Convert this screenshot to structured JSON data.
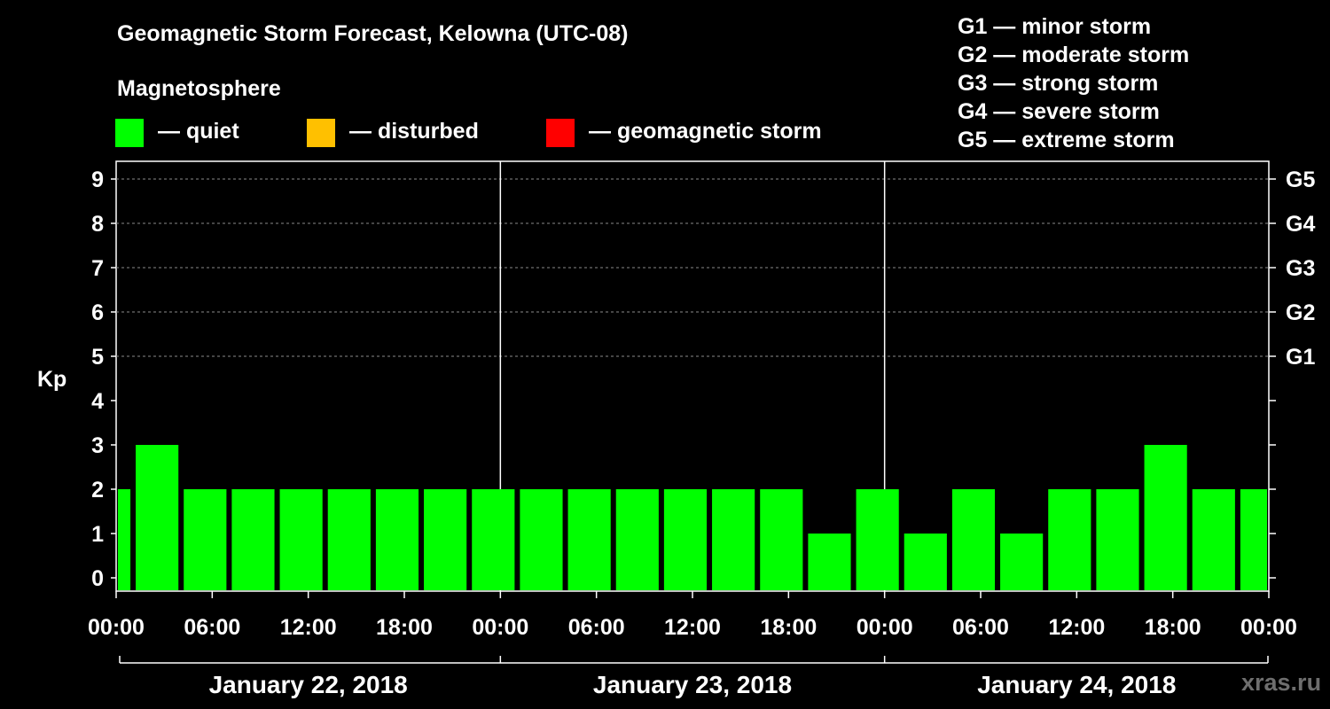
{
  "title": "Geomagnetic Storm Forecast, Kelowna (UTC-08)",
  "subtitle": "Magnetosphere",
  "legend": [
    {
      "label": "— quiet",
      "color": "#00ff00"
    },
    {
      "label": "— disturbed",
      "color": "#ffc000"
    },
    {
      "label": "— geomagnetic storm",
      "color": "#ff0000"
    }
  ],
  "g_legend": [
    "G1 — minor storm",
    "G2 — moderate storm",
    "G3 — strong storm",
    "G4 — severe storm",
    "G5 — extreme storm"
  ],
  "watermark": "xras.ru",
  "chart_data": {
    "type": "bar",
    "title": "Geomagnetic Storm Forecast, Kelowna (UTC-08)",
    "ylabel": "Kp",
    "ylim": [
      0,
      9
    ],
    "y_ticks": [
      "0",
      "1",
      "2",
      "3",
      "4",
      "5",
      "6",
      "7",
      "8",
      "9"
    ],
    "right_ticks": [
      {
        "kp": 5,
        "label": "G1"
      },
      {
        "kp": 6,
        "label": "G2"
      },
      {
        "kp": 7,
        "label": "G3"
      },
      {
        "kp": 8,
        "label": "G4"
      },
      {
        "kp": 9,
        "label": "G5"
      }
    ],
    "x_tick_labels": [
      "00:00",
      "06:00",
      "12:00",
      "18:00",
      "00:00",
      "06:00",
      "12:00",
      "18:00",
      "00:00",
      "06:00",
      "12:00",
      "18:00",
      "00:00"
    ],
    "dates": [
      "January 22, 2018",
      "January 23, 2018",
      "January 24, 2018"
    ],
    "x_range_hours": [
      0,
      72
    ],
    "bars": [
      {
        "start": 0,
        "end": 1,
        "kp": 2
      },
      {
        "start": 1,
        "end": 4,
        "kp": 3
      },
      {
        "start": 4,
        "end": 7,
        "kp": 2
      },
      {
        "start": 7,
        "end": 10,
        "kp": 2
      },
      {
        "start": 10,
        "end": 13,
        "kp": 2
      },
      {
        "start": 13,
        "end": 16,
        "kp": 2
      },
      {
        "start": 16,
        "end": 19,
        "kp": 2
      },
      {
        "start": 19,
        "end": 22,
        "kp": 2
      },
      {
        "start": 22,
        "end": 25,
        "kp": 2
      },
      {
        "start": 25,
        "end": 28,
        "kp": 2
      },
      {
        "start": 28,
        "end": 31,
        "kp": 2
      },
      {
        "start": 31,
        "end": 34,
        "kp": 2
      },
      {
        "start": 34,
        "end": 37,
        "kp": 2
      },
      {
        "start": 37,
        "end": 40,
        "kp": 2
      },
      {
        "start": 40,
        "end": 43,
        "kp": 2
      },
      {
        "start": 43,
        "end": 46,
        "kp": 1
      },
      {
        "start": 46,
        "end": 49,
        "kp": 2
      },
      {
        "start": 49,
        "end": 52,
        "kp": 1
      },
      {
        "start": 52,
        "end": 55,
        "kp": 2
      },
      {
        "start": 55,
        "end": 58,
        "kp": 1
      },
      {
        "start": 58,
        "end": 61,
        "kp": 2
      },
      {
        "start": 61,
        "end": 64,
        "kp": 2
      },
      {
        "start": 64,
        "end": 67,
        "kp": 3
      },
      {
        "start": 67,
        "end": 70,
        "kp": 2
      },
      {
        "start": 70,
        "end": 72,
        "kp": 2
      }
    ],
    "bar_color_quiet": "#00ff00",
    "grid": true
  }
}
